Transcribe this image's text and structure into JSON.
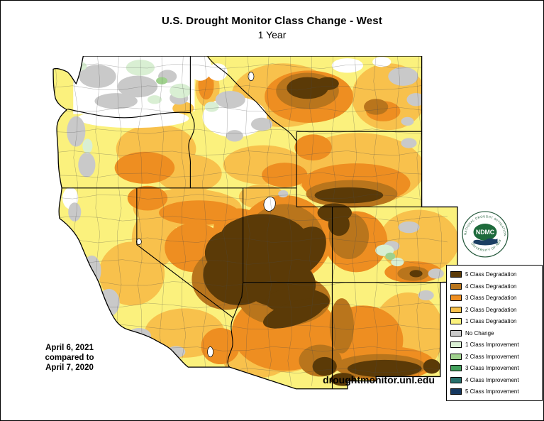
{
  "header": {
    "title": "U.S. Drought Monitor Class Change - West",
    "subtitle": "1 Year"
  },
  "dates": {
    "line1": "April 6, 2021",
    "line2": "compared to",
    "line3": "April 7, 2020"
  },
  "website": "droughtmonitor.unl.edu",
  "logo": {
    "center_text": "NDMC",
    "arc_top": "NATIONAL DROUGHT MITIGATION CENTER",
    "arc_bottom": "UNIVERSITY OF NEBRASKA"
  },
  "palette": {
    "deg5": "#5b3a07",
    "deg4": "#b9751c",
    "deg3": "#ee8e21",
    "deg2": "#f8c14c",
    "deg1": "#fbf17d",
    "nochange": "#c9c9c9",
    "imp1": "#d9efd3",
    "imp2": "#9fd18d",
    "imp3": "#43a05c",
    "imp4": "#27706b",
    "imp5": "#15375f",
    "nodata": "#ffffff",
    "border": "#000000"
  },
  "legend": {
    "items": [
      {
        "label": "5 Class Degradation",
        "color_key": "deg5"
      },
      {
        "label": "4 Class Degradation",
        "color_key": "deg4"
      },
      {
        "label": "3 Class Degradation",
        "color_key": "deg3"
      },
      {
        "label": "2 Class Degradation",
        "color_key": "deg2"
      },
      {
        "label": "1 Class Degradation",
        "color_key": "deg1"
      },
      {
        "label": "No Change",
        "color_key": "nochange"
      },
      {
        "label": "1 Class Improvement",
        "color_key": "imp1"
      },
      {
        "label": "2 Class Improvement",
        "color_key": "imp2"
      },
      {
        "label": "3 Class Improvement",
        "color_key": "imp3"
      },
      {
        "label": "4 Class Improvement",
        "color_key": "imp4"
      },
      {
        "label": "5 Class Improvement",
        "color_key": "imp5"
      }
    ]
  }
}
